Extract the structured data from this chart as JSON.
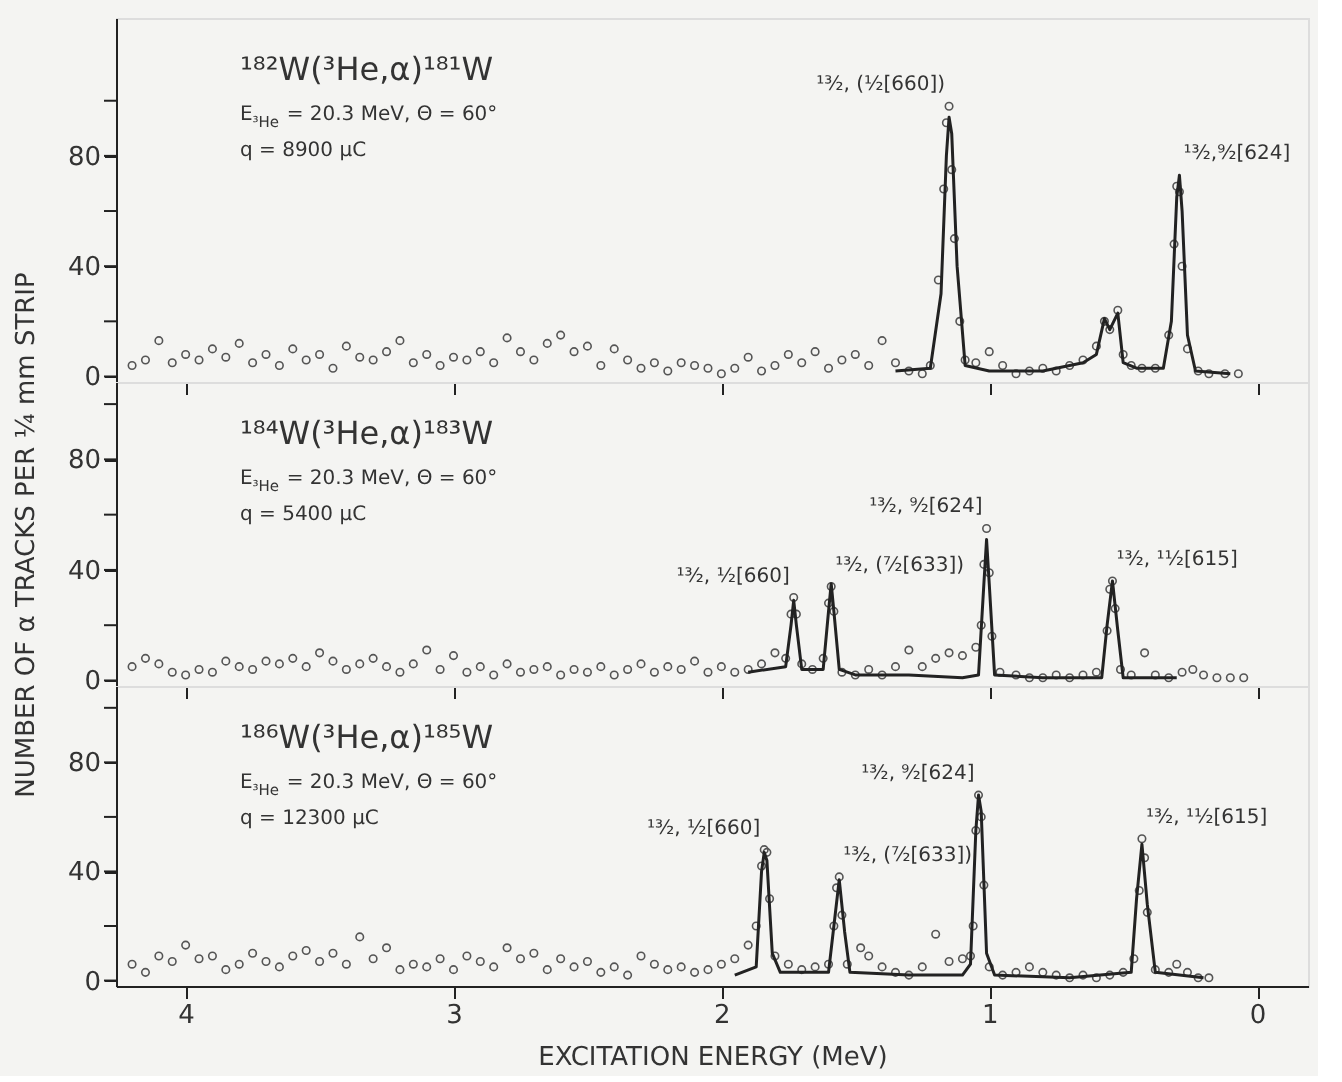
{
  "chart_data": [
    {
      "type": "scatter",
      "grid": false,
      "tick_labels": "y",
      "xlim": [
        4.26,
        -0.19
      ],
      "xticks": [
        4,
        3,
        2,
        1,
        0
      ],
      "ylim": [
        -2,
        130
      ],
      "yticks": [
        0,
        {
          "value": 20,
          "label": null
        },
        40,
        {
          "value": 60,
          "label": null
        },
        80,
        {
          "value": 100,
          "label": null
        }
      ],
      "annotations": [
        "¹⁸²W(³He,α)¹⁸¹W",
        "E$_{³He}$ = 20.3  MeV,  Θ = 60°",
        "q = 8900  μC",
        {
          "text": "¹³⁄₂, (¹⁄₂[660])",
          "x": 1.15,
          "y": 98
        },
        {
          "text": "¹³⁄₂,⁹⁄₂[624]",
          "x": 0.29,
          "y": 73
        }
      ],
      "series": [
        {
          "type": "scatter",
          "marker": "circle",
          "color": "#555555",
          "x": [
            4.2,
            4.15,
            4.1,
            4.05,
            4.0,
            3.95,
            3.9,
            3.85,
            3.8,
            3.75,
            3.7,
            3.65,
            3.6,
            3.55,
            3.5,
            3.45,
            3.4,
            3.35,
            3.3,
            3.25,
            3.2,
            3.15,
            3.1,
            3.05,
            3.0,
            2.95,
            2.9,
            2.85,
            2.8,
            2.75,
            2.7,
            2.65,
            2.6,
            2.55,
            2.5,
            2.45,
            2.4,
            2.35,
            2.3,
            2.25,
            2.2,
            2.15,
            2.1,
            2.05,
            2.0,
            1.95,
            1.9,
            1.85,
            1.8,
            1.75,
            1.7,
            1.65,
            1.6,
            1.55,
            1.5,
            1.45,
            1.4,
            1.35,
            1.3,
            1.25,
            1.22,
            1.19,
            1.17,
            1.16,
            1.15,
            1.14,
            1.13,
            1.11,
            1.09,
            1.05,
            1.0,
            0.95,
            0.9,
            0.85,
            0.8,
            0.75,
            0.7,
            0.65,
            0.6,
            0.57,
            0.55,
            0.52,
            0.5,
            0.47,
            0.43,
            0.38,
            0.33,
            0.31,
            0.3,
            0.29,
            0.28,
            0.26,
            0.22,
            0.18,
            0.12,
            0.07
          ],
          "values": [
            4,
            6,
            13,
            5,
            8,
            6,
            10,
            7,
            12,
            5,
            8,
            4,
            10,
            6,
            8,
            3,
            11,
            7,
            6,
            9,
            13,
            5,
            8,
            4,
            7,
            6,
            9,
            5,
            14,
            9,
            6,
            12,
            15,
            9,
            11,
            4,
            10,
            6,
            3,
            5,
            2,
            5,
            4,
            3,
            1,
            3,
            7,
            2,
            4,
            8,
            5,
            9,
            3,
            6,
            8,
            4,
            13,
            5,
            2,
            1,
            4,
            35,
            68,
            92,
            98,
            75,
            50,
            20,
            6,
            5,
            9,
            4,
            1,
            2,
            3,
            2,
            4,
            6,
            11,
            20,
            17,
            24,
            8,
            4,
            3,
            3,
            15,
            48,
            69,
            67,
            40,
            10,
            2,
            1,
            1,
            1
          ]
        },
        {
          "type": "line",
          "color": "#222222",
          "x": [
            1.35,
            1.22,
            1.18,
            1.16,
            1.15,
            1.14,
            1.12,
            1.09,
            1.0,
            0.8,
            0.65,
            0.6,
            0.57,
            0.55,
            0.52,
            0.5,
            0.45,
            0.35,
            0.32,
            0.3,
            0.29,
            0.28,
            0.26,
            0.23,
            0.1
          ],
          "values": [
            2,
            3,
            30,
            80,
            94,
            88,
            40,
            4,
            2,
            2,
            5,
            8,
            21,
            17,
            23,
            5,
            3,
            3,
            20,
            65,
            73,
            60,
            15,
            2,
            1
          ]
        }
      ]
    },
    {
      "type": "scatter",
      "grid": false,
      "tick_labels": "y",
      "xlim": [
        4.26,
        -0.19
      ],
      "xticks": [
        4,
        3,
        2,
        1,
        0
      ],
      "ylim": [
        -2,
        108
      ],
      "yticks": [
        0,
        {
          "value": 20,
          "label": null
        },
        40,
        {
          "value": 60,
          "label": null
        },
        80,
        {
          "value": 100,
          "label": null
        }
      ],
      "ylabel": "NUMBER OF α TRACKS PER ¼ mm STRIP",
      "annotations": [
        "¹⁸⁴W(³He,α)¹⁸³W",
        "E$_{³He}$ = 20.3  MeV,  Θ = 60°",
        "q = 5400  μC",
        {
          "text": "¹³⁄₂, ¹⁄₂[660]",
          "x": 1.73,
          "y": 30
        },
        {
          "text": "¹³⁄₂, (⁷⁄₂[633])",
          "x": 1.59,
          "y": 34
        },
        {
          "text": "¹³⁄₂, ⁹⁄₂[624]",
          "x": 1.01,
          "y": 55
        },
        {
          "text": "¹³⁄₂, ¹¹⁄₂[615]",
          "x": 0.54,
          "y": 36
        }
      ],
      "series": [
        {
          "type": "scatter",
          "marker": "circle",
          "color": "#555555",
          "x": [
            4.2,
            4.15,
            4.1,
            4.05,
            4.0,
            3.95,
            3.9,
            3.85,
            3.8,
            3.75,
            3.7,
            3.65,
            3.6,
            3.55,
            3.5,
            3.45,
            3.4,
            3.35,
            3.3,
            3.25,
            3.2,
            3.15,
            3.1,
            3.05,
            3.0,
            2.95,
            2.9,
            2.85,
            2.8,
            2.75,
            2.7,
            2.65,
            2.6,
            2.55,
            2.5,
            2.45,
            2.4,
            2.35,
            2.3,
            2.25,
            2.2,
            2.15,
            2.1,
            2.05,
            2.0,
            1.95,
            1.9,
            1.85,
            1.8,
            1.76,
            1.74,
            1.73,
            1.72,
            1.7,
            1.66,
            1.62,
            1.6,
            1.59,
            1.58,
            1.55,
            1.5,
            1.45,
            1.4,
            1.35,
            1.3,
            1.25,
            1.2,
            1.15,
            1.1,
            1.05,
            1.03,
            1.02,
            1.01,
            1.0,
            0.99,
            0.96,
            0.9,
            0.85,
            0.8,
            0.75,
            0.7,
            0.65,
            0.6,
            0.56,
            0.55,
            0.54,
            0.53,
            0.51,
            0.47,
            0.42,
            0.38,
            0.33,
            0.28,
            0.24,
            0.2,
            0.15,
            0.1,
            0.05
          ],
          "values": [
            5,
            8,
            6,
            3,
            2,
            4,
            3,
            7,
            5,
            4,
            7,
            6,
            8,
            5,
            10,
            7,
            4,
            6,
            8,
            5,
            3,
            6,
            11,
            4,
            9,
            3,
            5,
            2,
            6,
            3,
            4,
            5,
            2,
            4,
            3,
            5,
            2,
            4,
            6,
            3,
            5,
            4,
            7,
            3,
            5,
            3,
            4,
            6,
            10,
            8,
            24,
            30,
            24,
            6,
            4,
            8,
            28,
            34,
            25,
            3,
            2,
            4,
            2,
            5,
            11,
            5,
            8,
            10,
            9,
            12,
            20,
            42,
            55,
            39,
            16,
            3,
            2,
            1,
            1,
            2,
            1,
            2,
            3,
            18,
            33,
            36,
            26,
            4,
            2,
            10,
            2,
            1,
            3,
            4,
            2,
            1,
            1,
            1
          ]
        },
        {
          "type": "line",
          "color": "#222222",
          "x": [
            1.9,
            1.76,
            1.74,
            1.73,
            1.72,
            1.7,
            1.62,
            1.6,
            1.59,
            1.58,
            1.56,
            1.5,
            1.3,
            1.1,
            1.04,
            1.02,
            1.01,
            1.0,
            0.98,
            0.8,
            0.58,
            0.56,
            0.54,
            0.52,
            0.5,
            0.3
          ],
          "values": [
            3,
            5,
            20,
            29,
            20,
            4,
            4,
            25,
            35,
            25,
            4,
            2,
            2,
            1,
            2,
            35,
            51,
            35,
            2,
            1,
            1,
            20,
            36,
            18,
            1,
            1
          ]
        }
      ]
    },
    {
      "type": "scatter",
      "grid": false,
      "xlim": [
        4.26,
        -0.19
      ],
      "xticks": [
        4,
        3,
        2,
        1,
        0
      ],
      "ylim": [
        -2,
        108
      ],
      "yticks": [
        0,
        {
          "value": 20,
          "label": null
        },
        40,
        {
          "value": 60,
          "label": null
        },
        80,
        {
          "value": 100,
          "label": null
        }
      ],
      "xlabel": "EXCITATION ENERGY  (MeV)",
      "annotations": [
        "¹⁸⁶W(³He,α)¹⁸⁵W",
        "E$_{³He}$ = 20.3  MeV,  Θ = 60°",
        "q = 12300  μC",
        {
          "text": "¹³⁄₂, ¹⁄₂[660]",
          "x": 1.84,
          "y": 48
        },
        {
          "text": "¹³⁄₂, (⁷⁄₂[633])",
          "x": 1.56,
          "y": 38
        },
        {
          "text": "¹³⁄₂, ⁹⁄₂[624]",
          "x": 1.04,
          "y": 68
        },
        {
          "text": "¹³⁄₂, ¹¹⁄₂[615]",
          "x": 0.43,
          "y": 52
        }
      ],
      "series": [
        {
          "type": "scatter",
          "marker": "circle",
          "color": "#555555",
          "x": [
            4.2,
            4.15,
            4.1,
            4.05,
            4.0,
            3.95,
            3.9,
            3.85,
            3.8,
            3.75,
            3.7,
            3.65,
            3.6,
            3.55,
            3.5,
            3.45,
            3.4,
            3.35,
            3.3,
            3.25,
            3.2,
            3.15,
            3.1,
            3.05,
            3.0,
            2.95,
            2.9,
            2.85,
            2.8,
            2.75,
            2.7,
            2.65,
            2.6,
            2.55,
            2.5,
            2.45,
            2.4,
            2.35,
            2.3,
            2.25,
            2.2,
            2.15,
            2.1,
            2.05,
            2.0,
            1.95,
            1.9,
            1.87,
            1.85,
            1.84,
            1.83,
            1.82,
            1.8,
            1.75,
            1.7,
            1.65,
            1.6,
            1.58,
            1.57,
            1.56,
            1.55,
            1.53,
            1.48,
            1.45,
            1.4,
            1.35,
            1.3,
            1.25,
            1.2,
            1.15,
            1.1,
            1.07,
            1.06,
            1.05,
            1.04,
            1.03,
            1.02,
            1.0,
            0.95,
            0.9,
            0.85,
            0.8,
            0.75,
            0.7,
            0.65,
            0.6,
            0.55,
            0.5,
            0.46,
            0.44,
            0.43,
            0.42,
            0.41,
            0.38,
            0.33,
            0.3,
            0.26,
            0.22,
            0.18
          ],
          "values": [
            6,
            3,
            9,
            7,
            13,
            8,
            9,
            4,
            6,
            10,
            7,
            5,
            9,
            11,
            7,
            10,
            6,
            16,
            8,
            12,
            4,
            6,
            5,
            8,
            4,
            9,
            7,
            5,
            12,
            8,
            10,
            4,
            8,
            5,
            7,
            3,
            5,
            2,
            9,
            6,
            4,
            5,
            3,
            4,
            6,
            8,
            13,
            20,
            42,
            48,
            47,
            30,
            9,
            6,
            4,
            5,
            6,
            20,
            34,
            38,
            24,
            6,
            12,
            9,
            5,
            3,
            2,
            5,
            17,
            7,
            8,
            9,
            20,
            55,
            68,
            60,
            35,
            5,
            2,
            3,
            5,
            3,
            2,
            1,
            2,
            1,
            2,
            3,
            8,
            33,
            52,
            45,
            25,
            4,
            3,
            6,
            3,
            1,
            1
          ]
        },
        {
          "type": "line",
          "color": "#222222",
          "x": [
            1.95,
            1.87,
            1.85,
            1.84,
            1.83,
            1.81,
            1.78,
            1.6,
            1.58,
            1.56,
            1.54,
            1.52,
            1.3,
            1.1,
            1.07,
            1.05,
            1.04,
            1.03,
            1.01,
            0.98,
            0.7,
            0.47,
            0.45,
            0.43,
            0.41,
            0.38,
            0.2
          ],
          "values": [
            2,
            5,
            40,
            47,
            44,
            10,
            3,
            3,
            20,
            37,
            18,
            3,
            2,
            2,
            6,
            55,
            68,
            62,
            10,
            2,
            1,
            3,
            30,
            50,
            28,
            3,
            1
          ]
        }
      ]
    }
  ]
}
